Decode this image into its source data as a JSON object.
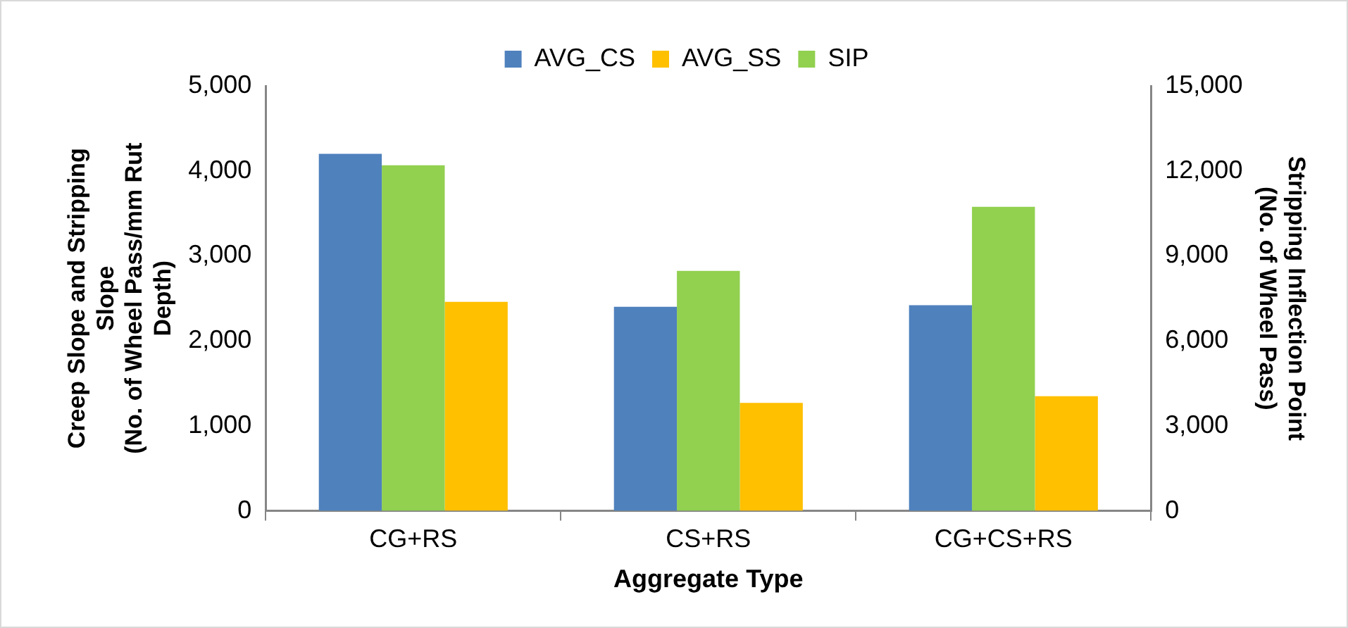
{
  "chart_data": {
    "type": "bar",
    "xlabel": "Aggregate Type",
    "ylabel": "Creep Slope and Stripping\nSlope\n(No. of Wheel Pass/mm Rut\nDepth)",
    "y2label": "Stripping Inflection Point\n(No. of Wheel Pass)",
    "categories": [
      "CG+RS",
      "CS+RS",
      "CG+CS+RS"
    ],
    "series": [
      {
        "name": "AVG_CS",
        "color": "#4f81bd",
        "values": [
          4200,
          2400,
          2420
        ]
      },
      {
        "name": "SIP",
        "color": "#92d050",
        "axis": "y2",
        "values": [
          12200,
          8470,
          10730
        ]
      },
      {
        "name": "AVG_SS",
        "color": "#ffc000",
        "values": [
          2460,
          1270,
          1350
        ]
      }
    ],
    "ylim": [
      0,
      5000
    ],
    "yticks": [
      {
        "value": 0,
        "label": "0"
      },
      {
        "value": 1000,
        "label": "1,000"
      },
      {
        "value": 2000,
        "label": "2,000"
      },
      {
        "value": 3000,
        "label": "3,000"
      },
      {
        "value": 4000,
        "label": "4,000"
      },
      {
        "value": 5000,
        "label": "5,000"
      }
    ],
    "y2lim": [
      0,
      15000
    ],
    "y2ticks": [
      {
        "value": 0,
        "label": "0"
      },
      {
        "value": 3000,
        "label": "3,000"
      },
      {
        "value": 6000,
        "label": "6,000"
      },
      {
        "value": 9000,
        "label": "9,000"
      },
      {
        "value": 12000,
        "label": "12,000"
      },
      {
        "value": 15000,
        "label": "15,000"
      }
    ],
    "legend": "top",
    "grid": false
  }
}
